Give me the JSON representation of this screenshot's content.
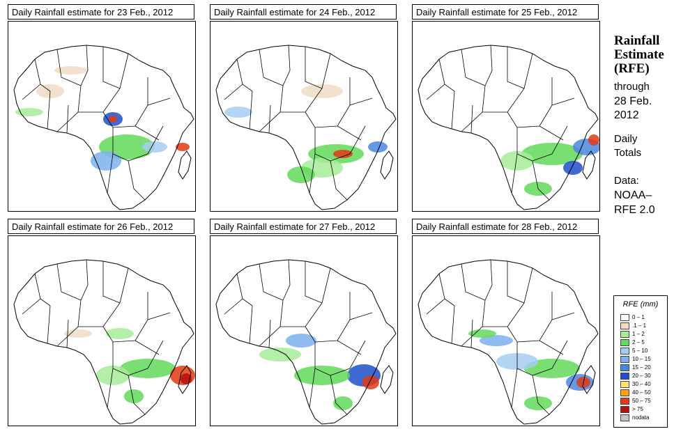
{
  "panels": [
    {
      "title": "Daily Rainfall estimate for  23 Feb., 2012"
    },
    {
      "title": "Daily Rainfall estimate for  24 Feb., 2012"
    },
    {
      "title": "Daily Rainfall estimate for  25 Feb., 2012"
    },
    {
      "title": "Daily Rainfall estimate for  26 Feb., 2012"
    },
    {
      "title": "Daily Rainfall estimate for  27 Feb., 2012"
    },
    {
      "title": "Daily Rainfall estimate for  28 Feb., 2012"
    }
  ],
  "side": {
    "title_line1": "Rainfall",
    "title_line2": "Estimate",
    "title_line3": "(RFE)",
    "through": "through",
    "date_line1": "28 Feb.",
    "date_line2": "2012",
    "daily": "Daily",
    "totals": "Totals",
    "data_label": "Data:",
    "source_line1": "NOAA–",
    "source_line2": "RFE 2.0"
  },
  "legend": {
    "title": "RFE (mm)",
    "items": [
      {
        "label": "0 – 1",
        "color": "#ffffff"
      },
      {
        "label": ".1 – 1",
        "color": "#eedcc5"
      },
      {
        "label": "1 – 2",
        "color": "#a6ec98"
      },
      {
        "label": "2 – 5",
        "color": "#62d95a"
      },
      {
        "label": "5 – 10",
        "color": "#a7ccf2"
      },
      {
        "label": "10 – 15",
        "color": "#7db1ee"
      },
      {
        "label": "15 – 20",
        "color": "#4a86e0"
      },
      {
        "label": "20 – 30",
        "color": "#1f4fcc"
      },
      {
        "label": "30 – 40",
        "color": "#ffe27a"
      },
      {
        "label": "40 – 50",
        "color": "#ffa21a"
      },
      {
        "label": "50 – 75",
        "color": "#e33a12"
      },
      {
        "label": "> 75",
        "color": "#b50f0f"
      },
      {
        "label": "nodata",
        "color": "#c4c4c4"
      }
    ]
  }
}
